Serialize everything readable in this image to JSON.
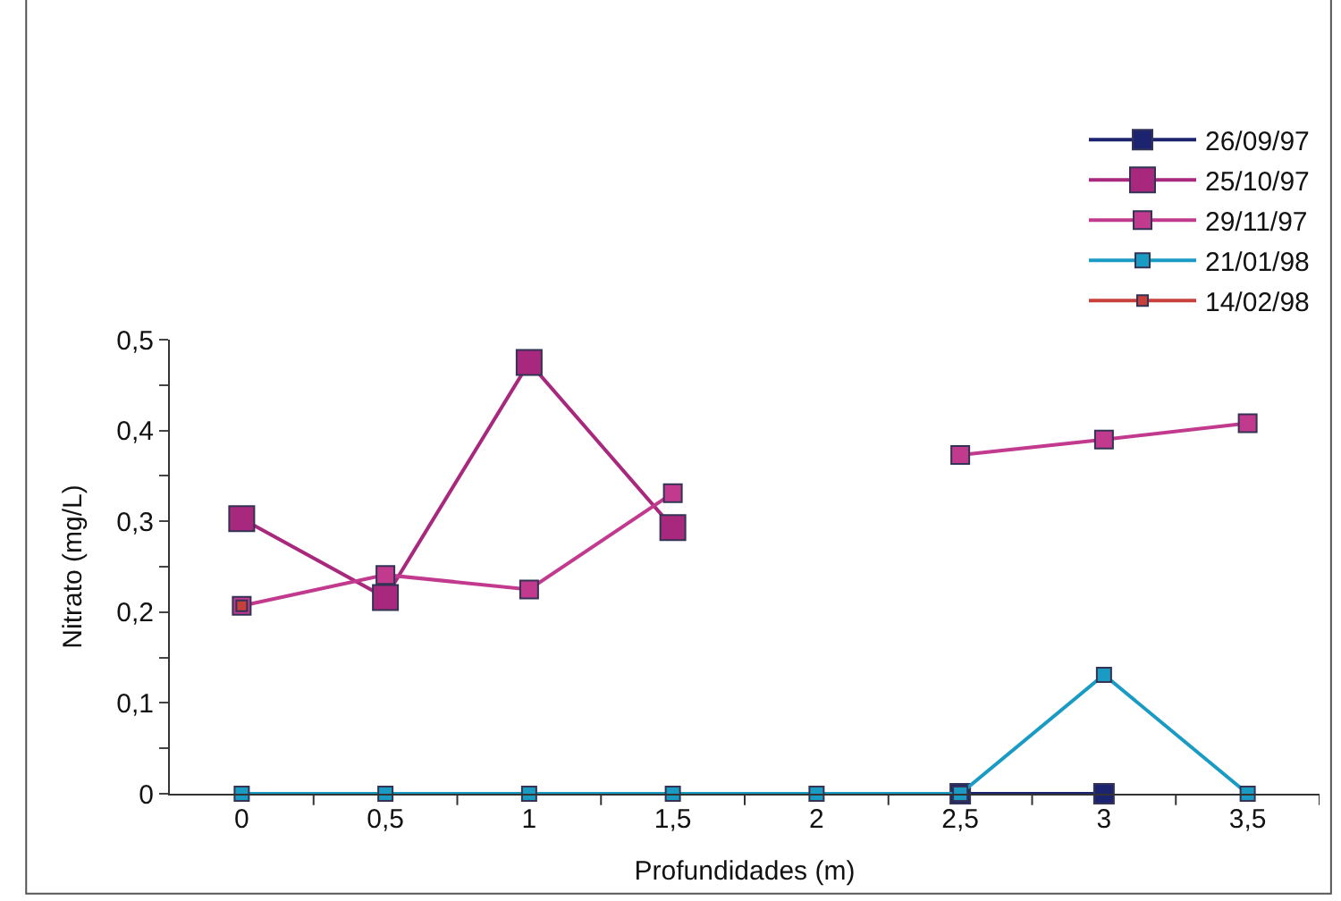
{
  "chart_data": {
    "type": "line",
    "xlabel": "Profundidades (m)",
    "ylabel": "Nitrato (mg/L)",
    "categories": [
      "0",
      "0,5",
      "1",
      "1,5",
      "2",
      "2,5",
      "3",
      "3,5"
    ],
    "ylim": [
      0,
      0.5
    ],
    "yticks": [
      {
        "value": 0,
        "label": "0"
      },
      {
        "value": 0.05,
        "label": null
      },
      {
        "value": 0.1,
        "label": "0,1"
      },
      {
        "value": 0.15,
        "label": null
      },
      {
        "value": 0.2,
        "label": "0,2"
      },
      {
        "value": 0.25,
        "label": null
      },
      {
        "value": 0.3,
        "label": "0,3"
      },
      {
        "value": 0.35,
        "label": null
      },
      {
        "value": 0.4,
        "label": "0,4"
      },
      {
        "value": 0.45,
        "label": null
      },
      {
        "value": 0.5,
        "label": "0,5"
      }
    ],
    "legend": "top right",
    "marker": "square",
    "line_style": "solid",
    "series": [
      {
        "name": "26/09/97",
        "color": "#1c2470",
        "values": [
          null,
          null,
          null,
          null,
          null,
          0,
          0,
          null
        ]
      },
      {
        "name": "25/10/97",
        "color": "#a8287e",
        "values": [
          0.303,
          0.216,
          0.475,
          0.293,
          null,
          null,
          null,
          null
        ]
      },
      {
        "name": "29/11/97",
        "color": "#c23a8e",
        "values": [
          0.207,
          0.241,
          0.225,
          0.331,
          null,
          0.373,
          0.39,
          0.408
        ]
      },
      {
        "name": "21/01/98",
        "color": "#1a9bc4",
        "values": [
          0,
          0,
          0,
          0,
          0,
          0,
          0.131,
          0
        ]
      },
      {
        "name": "14/02/98",
        "color": "#c8403c",
        "values": [
          0.207,
          null,
          null,
          null,
          null,
          null,
          null,
          null
        ]
      }
    ]
  }
}
